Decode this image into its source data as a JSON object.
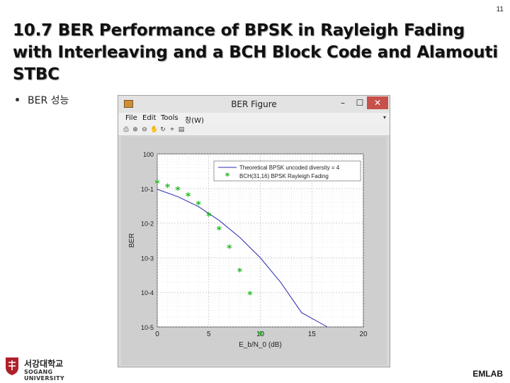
{
  "slide": {
    "page_number": "11",
    "title": "10.7 BER Performance of BPSK in Rayleigh Fading with Interleaving and a BCH Block Code and Alamouti STBC",
    "bullet": "BER 성능",
    "footer_label": "EMLAB",
    "logo_korean": "서강대학교",
    "logo_english": "SOGANG UNIVERSITY"
  },
  "window": {
    "title": "BER Figure",
    "minimize": "–",
    "maximize": "☐",
    "close": "✕",
    "menu": [
      "File",
      "Edit",
      "Tools",
      "창(W)"
    ],
    "menu_arrow": "▾",
    "toolbar_icons": [
      "print-icon",
      "zoom-in-icon",
      "zoom-out-icon",
      "pan-icon",
      "rotate-icon",
      "data-cursor-icon",
      "legend-icon"
    ]
  },
  "chart_data": {
    "type": "line",
    "xlabel": "E_b/N_0 (dB)",
    "ylabel": "BER",
    "xlim": [
      0,
      20
    ],
    "ylim": [
      1e-05,
      1
    ],
    "yscale": "log",
    "grid": true,
    "minor_grid": true,
    "legend_position": "top-right",
    "x_ticks": [
      0,
      5,
      10,
      15,
      20
    ],
    "y_ticks": [
      "10^0",
      "10^-1",
      "10^-2",
      "10^-3",
      "10^-4",
      "10^-5"
    ],
    "series": [
      {
        "name": "Theoretical BPSK uncoded diversity = 4",
        "style": "line",
        "color": "#2b2bb0",
        "x": [
          0,
          2,
          4,
          6,
          8,
          10,
          12,
          14,
          16.5
        ],
        "y": [
          0.095,
          0.058,
          0.03,
          0.012,
          0.0039,
          0.001,
          0.00019,
          2.6e-05,
          1.2e-06
        ]
      },
      {
        "name": "BCH(31,16) BPSK Rayleigh Fading",
        "style": "marker",
        "marker": "asterisk",
        "color": "#22bb22",
        "x": [
          0,
          1,
          2,
          3,
          4,
          5,
          6,
          7,
          8,
          9,
          10
        ],
        "y": [
          0.14,
          0.11,
          0.09,
          0.06,
          0.034,
          0.016,
          0.0064,
          0.0019,
          0.0004,
          8.6e-05,
          6e-06
        ]
      }
    ]
  }
}
